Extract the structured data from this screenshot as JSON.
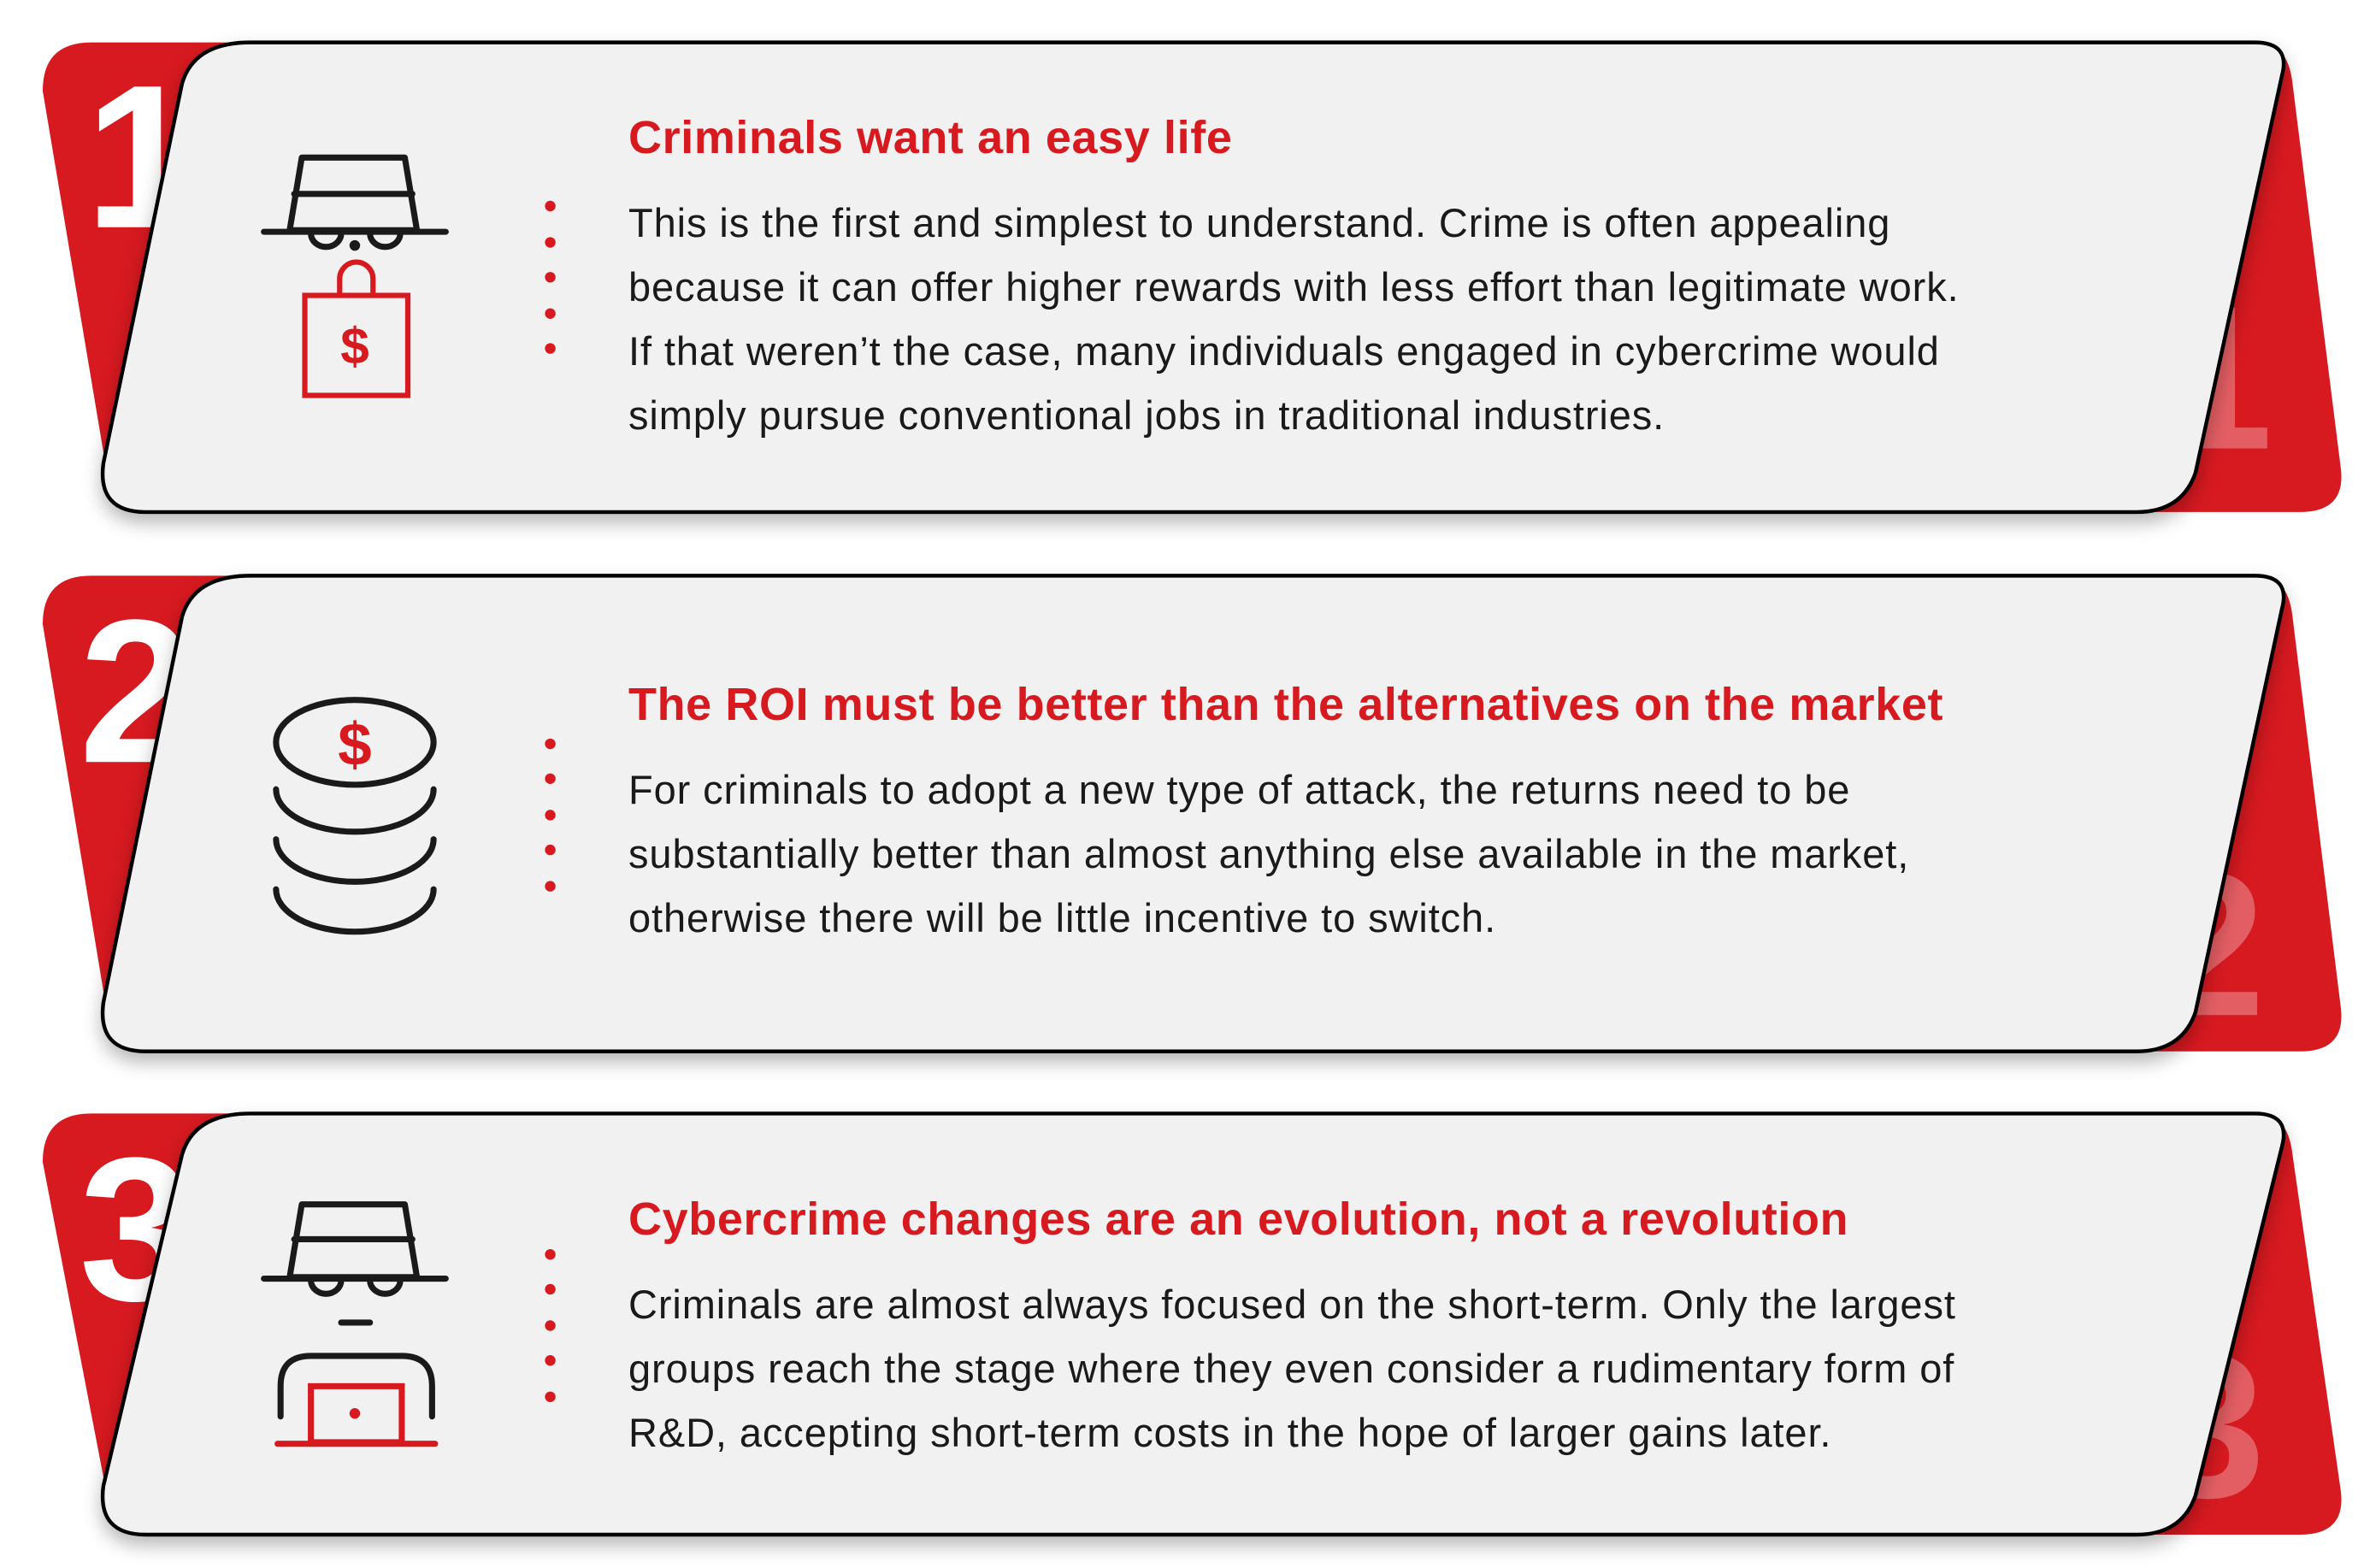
{
  "colors": {
    "accent": "#d71920",
    "card": "#f0f1f0",
    "text": "#1a1a1a"
  },
  "items": [
    {
      "number": "1",
      "icon": "hat-spy-shopping-bag-dollar-icon",
      "title": "Criminals want an easy life",
      "lines": [
        "This is the first and simplest to understand. Crime is often appealing",
        "because it can offer higher rewards with less effort than legitimate work.",
        "If that weren’t the case, many individuals engaged in cybercrime would",
        "simply pursue conventional jobs in traditional industries."
      ]
    },
    {
      "number": "2",
      "icon": "coin-stack-dollar-icon",
      "title": "The ROI must be better than the alternatives on the market",
      "lines": [
        "For criminals to adopt a new type of attack, the returns need to be",
        "substantially better than almost anything else available in the market,",
        "otherwise there will be little incentive to switch."
      ]
    },
    {
      "number": "3",
      "icon": "hat-spy-laptop-icon",
      "title": "Cybercrime changes are an evolution, not a revolution",
      "lines": [
        "Criminals are almost always focused on the short-term. Only the largest",
        "groups reach the stage where they even consider a rudimentary form of",
        "R&D, accepting short-term costs in the hope of larger gains later."
      ]
    }
  ]
}
